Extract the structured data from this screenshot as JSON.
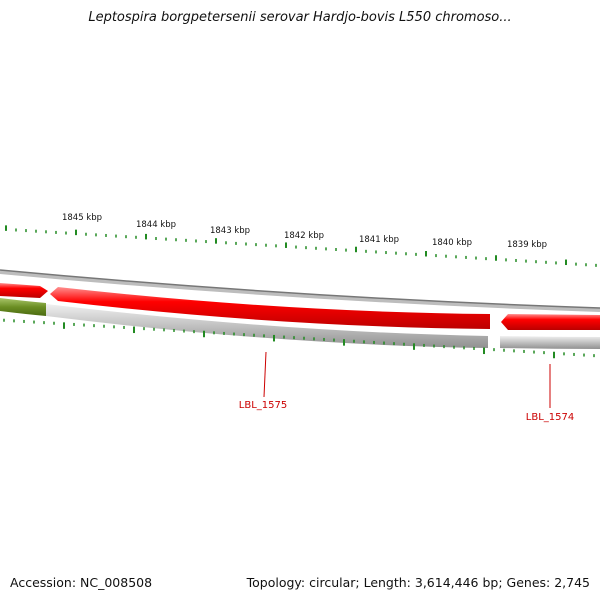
{
  "title": "Leptospira borgpetersenii serovar Hardjo-bovis L550 chromoso...",
  "accession": "Accession: NC_008508",
  "stats": "Topology: circular; Length: 3,614,446 bp; Genes: 2,745",
  "ruler": [
    {
      "label": "1845 kbp"
    },
    {
      "label": "1844 kbp"
    },
    {
      "label": "1843 kbp"
    },
    {
      "label": "1842 kbp"
    },
    {
      "label": "1841 kbp"
    },
    {
      "label": "1840 kbp"
    },
    {
      "label": "1839 kbp"
    }
  ],
  "genes": [
    {
      "label": "LBL_1575"
    },
    {
      "label": "LBL_1574"
    }
  ],
  "colors": {
    "gene_forward": "#ee0000",
    "gene_reverse": "#6b8e23",
    "track": "#999999",
    "ticks": "#228b22",
    "gene_label": "#cc0000"
  }
}
